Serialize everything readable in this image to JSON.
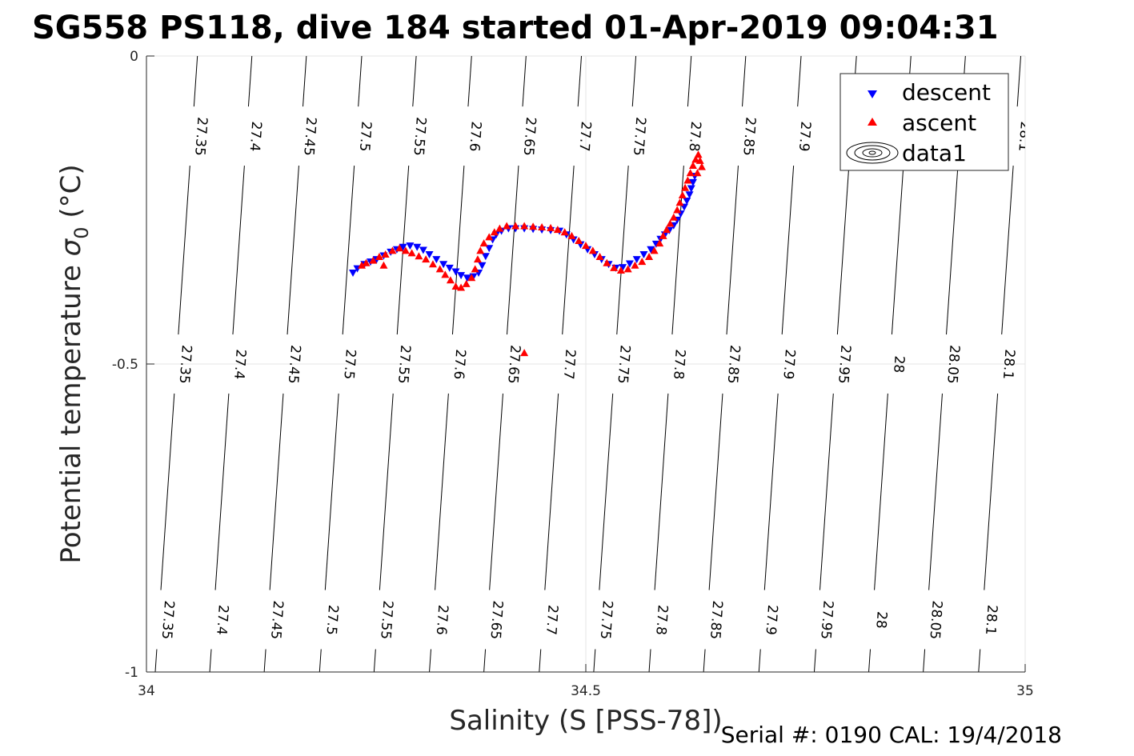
{
  "chart_data": {
    "type": "scatter",
    "title": "SG558 PS118, dive 184 started 01-Apr-2019 09:04:31",
    "xlabel": "Salinity (S [PSS-78])",
    "ylabel": "Potential temperature σ₀ (°C)",
    "ylabel_main": "Potential temperature ",
    "ylabel_sigma": "σ",
    "ylabel_sub": "0",
    "ylabel_unit": " (°C)",
    "xlim": [
      34,
      35
    ],
    "ylim": [
      -1,
      0
    ],
    "x_ticks": [
      "34",
      "34.5",
      "35"
    ],
    "y_ticks": [
      "0",
      "-0.5",
      "-1"
    ],
    "grid": true,
    "legend": {
      "placement": "top-right",
      "entries": [
        "descent",
        "ascent",
        "data1"
      ]
    },
    "series": [
      {
        "name": "descent",
        "marker": "triangle-down",
        "color": "#0000ff",
        "points": [
          [
            34.235,
            -0.352
          ],
          [
            34.24,
            -0.345
          ],
          [
            34.248,
            -0.338
          ],
          [
            34.255,
            -0.334
          ],
          [
            34.262,
            -0.33
          ],
          [
            34.27,
            -0.324
          ],
          [
            34.278,
            -0.318
          ],
          [
            34.285,
            -0.314
          ],
          [
            34.292,
            -0.31
          ],
          [
            34.3,
            -0.308
          ],
          [
            34.308,
            -0.31
          ],
          [
            34.315,
            -0.315
          ],
          [
            34.322,
            -0.322
          ],
          [
            34.33,
            -0.33
          ],
          [
            34.338,
            -0.338
          ],
          [
            34.345,
            -0.344
          ],
          [
            34.352,
            -0.35
          ],
          [
            34.358,
            -0.356
          ],
          [
            34.365,
            -0.36
          ],
          [
            34.372,
            -0.358
          ],
          [
            34.378,
            -0.352
          ],
          [
            34.382,
            -0.34
          ],
          [
            34.386,
            -0.325
          ],
          [
            34.39,
            -0.312
          ],
          [
            34.394,
            -0.298
          ],
          [
            34.398,
            -0.29
          ],
          [
            34.404,
            -0.284
          ],
          [
            34.412,
            -0.28
          ],
          [
            34.42,
            -0.28
          ],
          [
            34.43,
            -0.28
          ],
          [
            34.44,
            -0.281
          ],
          [
            34.45,
            -0.282
          ],
          [
            34.46,
            -0.283
          ],
          [
            34.47,
            -0.284
          ],
          [
            34.478,
            -0.29
          ],
          [
            34.486,
            -0.298
          ],
          [
            34.494,
            -0.306
          ],
          [
            34.502,
            -0.314
          ],
          [
            34.51,
            -0.322
          ],
          [
            34.518,
            -0.33
          ],
          [
            34.526,
            -0.338
          ],
          [
            34.534,
            -0.344
          ],
          [
            34.542,
            -0.343
          ],
          [
            34.55,
            -0.337
          ],
          [
            34.558,
            -0.33
          ],
          [
            34.566,
            -0.322
          ],
          [
            34.574,
            -0.314
          ],
          [
            34.58,
            -0.305
          ],
          [
            34.585,
            -0.297
          ],
          [
            34.59,
            -0.29
          ],
          [
            34.595,
            -0.283
          ],
          [
            34.6,
            -0.275
          ],
          [
            34.604,
            -0.266
          ],
          [
            34.608,
            -0.256
          ],
          [
            34.612,
            -0.245
          ],
          [
            34.615,
            -0.235
          ],
          [
            34.618,
            -0.225
          ],
          [
            34.62,
            -0.215
          ],
          [
            34.622,
            -0.205
          ],
          [
            34.624,
            -0.195
          ]
        ]
      },
      {
        "name": "ascent",
        "marker": "triangle-up",
        "color": "#ff0000",
        "points": [
          [
            34.245,
            -0.34
          ],
          [
            34.25,
            -0.336
          ],
          [
            34.258,
            -0.332
          ],
          [
            34.265,
            -0.326
          ],
          [
            34.272,
            -0.322
          ],
          [
            34.28,
            -0.316
          ],
          [
            34.288,
            -0.312
          ],
          [
            34.295,
            -0.316
          ],
          [
            34.302,
            -0.32
          ],
          [
            34.31,
            -0.325
          ],
          [
            34.318,
            -0.33
          ],
          [
            34.326,
            -0.338
          ],
          [
            34.334,
            -0.346
          ],
          [
            34.34,
            -0.355
          ],
          [
            34.346,
            -0.364
          ],
          [
            34.352,
            -0.374
          ],
          [
            34.358,
            -0.376
          ],
          [
            34.364,
            -0.37
          ],
          [
            34.37,
            -0.36
          ],
          [
            34.374,
            -0.346
          ],
          [
            34.377,
            -0.33
          ],
          [
            34.38,
            -0.316
          ],
          [
            34.384,
            -0.304
          ],
          [
            34.39,
            -0.294
          ],
          [
            34.396,
            -0.286
          ],
          [
            34.402,
            -0.28
          ],
          [
            34.41,
            -0.276
          ],
          [
            34.42,
            -0.276
          ],
          [
            34.43,
            -0.276
          ],
          [
            34.44,
            -0.277
          ],
          [
            34.45,
            -0.278
          ],
          [
            34.46,
            -0.279
          ],
          [
            34.468,
            -0.282
          ],
          [
            34.476,
            -0.286
          ],
          [
            34.484,
            -0.292
          ],
          [
            34.492,
            -0.3
          ],
          [
            34.5,
            -0.308
          ],
          [
            34.508,
            -0.316
          ],
          [
            34.516,
            -0.326
          ],
          [
            34.524,
            -0.336
          ],
          [
            34.532,
            -0.344
          ],
          [
            34.54,
            -0.348
          ],
          [
            34.548,
            -0.346
          ],
          [
            34.556,
            -0.34
          ],
          [
            34.564,
            -0.334
          ],
          [
            34.572,
            -0.326
          ],
          [
            34.578,
            -0.316
          ],
          [
            34.584,
            -0.304
          ],
          [
            34.588,
            -0.292
          ],
          [
            34.592,
            -0.282
          ],
          [
            34.596,
            -0.272
          ],
          [
            34.6,
            -0.262
          ],
          [
            34.604,
            -0.25
          ],
          [
            34.607,
            -0.238
          ],
          [
            34.61,
            -0.226
          ],
          [
            34.613,
            -0.214
          ],
          [
            34.616,
            -0.202
          ],
          [
            34.619,
            -0.19
          ],
          [
            34.622,
            -0.178
          ],
          [
            34.625,
            -0.168
          ],
          [
            34.628,
            -0.16
          ],
          [
            34.63,
            -0.17
          ],
          [
            34.627,
            -0.19
          ],
          [
            34.632,
            -0.18
          ],
          [
            34.27,
            -0.34
          ],
          [
            34.43,
            -0.482
          ]
        ]
      }
    ],
    "isopycnals": {
      "line_color": "#000000",
      "levels": [
        "27.35",
        "27.4",
        "27.45",
        "27.5",
        "27.55",
        "27.6",
        "27.65",
        "27.7",
        "27.75",
        "27.8",
        "27.85",
        "27.9",
        "27.95",
        "28",
        "28.05",
        "28.1"
      ],
      "salinity_at_theta_0": [
        34.058,
        34.12,
        34.182,
        34.245,
        34.307,
        34.37,
        34.432,
        34.495,
        34.557,
        34.62,
        34.682,
        34.745,
        34.808,
        34.87,
        34.932,
        34.995
      ],
      "salinity_at_theta_-1": [
        34.01,
        34.072,
        34.134,
        34.197,
        34.259,
        34.322,
        34.384,
        34.447,
        34.509,
        34.572,
        34.634,
        34.697,
        34.76,
        34.822,
        34.884,
        34.947
      ]
    }
  },
  "footer": {
    "serial_label": "Serial #: 0190  CAL: 19/4/2018"
  }
}
